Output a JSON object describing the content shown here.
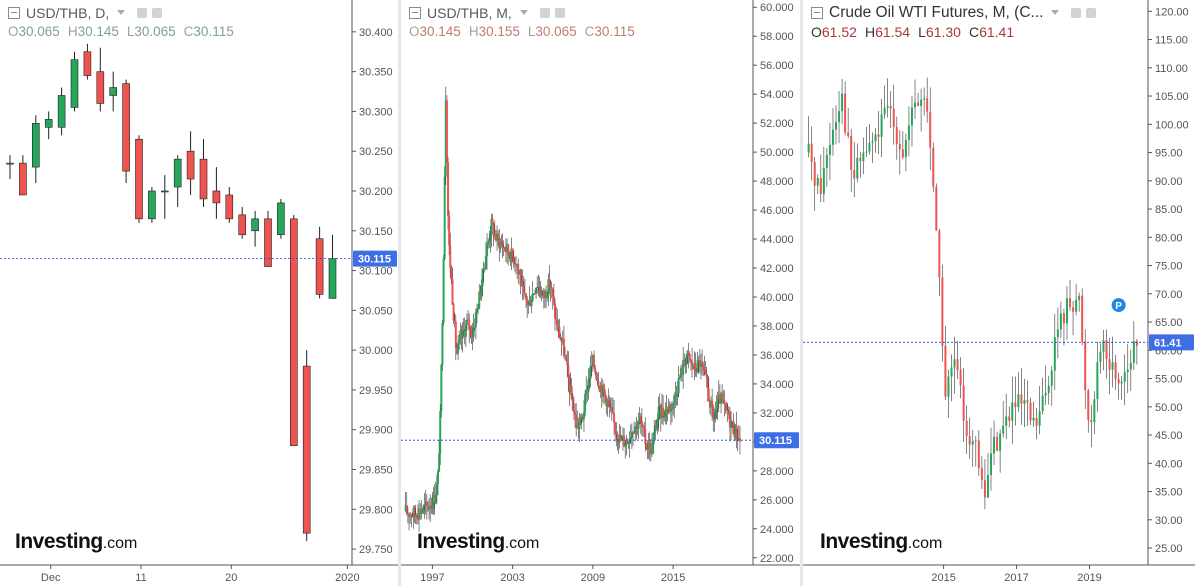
{
  "colors": {
    "up": "#26a65b",
    "down": "#ef5350",
    "price_line": "#1e49c8",
    "price_tag": "#3d6ee6",
    "axis_text": "#555555",
    "grid": "#f3f3f3"
  },
  "panels": [
    {
      "title": "USD/THB, D,",
      "ohlc": {
        "o_label": "O",
        "o": "30.065",
        "h_label": "H",
        "h": "30.145",
        "l_label": "L",
        "l": "30.065",
        "c_label": "C",
        "c": "30.115"
      },
      "logo": {
        "brand": "Investing",
        "suffix": ".com"
      }
    },
    {
      "title": "USD/THB, M,",
      "ohlc": {
        "o_label": "O",
        "o": "30.145",
        "h_label": "H",
        "h": "30.155",
        "l_label": "L",
        "l": "30.065",
        "c_label": "C",
        "c": "30.115"
      },
      "logo": {
        "brand": "Investing",
        "suffix": ".com"
      }
    },
    {
      "title": "Crude Oil WTI Futures, M, (C...",
      "ohlc": {
        "o_label": "O",
        "o": "61.52",
        "h_label": "H",
        "h": "61.54",
        "l_label": "L",
        "l": "61.30",
        "c_label": "C",
        "c": "61.41"
      },
      "logo": {
        "brand": "Investing",
        "suffix": ".com"
      }
    }
  ],
  "chart_data": [
    {
      "type": "candlestick",
      "title": "USD/THB, D,",
      "ylim": [
        29.73,
        30.44
      ],
      "y_ticks": [
        "30.400",
        "30.350",
        "30.300",
        "30.250",
        "30.200",
        "30.150",
        "30.100",
        "30.050",
        "30.000",
        "29.950",
        "29.900",
        "29.850",
        "29.800",
        "29.750"
      ],
      "x_ticks": [
        {
          "label": "Dec",
          "x": 3
        },
        {
          "label": "11",
          "x": 10
        },
        {
          "label": "20",
          "x": 17
        },
        {
          "label": "2020",
          "x": 26
        }
      ],
      "last_price": 30.115,
      "last_price_label": "30.115",
      "candles": [
        {
          "x": 0,
          "o": 30.235,
          "h": 30.245,
          "l": 30.215,
          "c": 30.235
        },
        {
          "x": 1,
          "o": 30.235,
          "h": 30.245,
          "l": 30.195,
          "c": 30.195
        },
        {
          "x": 2,
          "o": 30.23,
          "h": 30.295,
          "l": 30.21,
          "c": 30.285
        },
        {
          "x": 3,
          "o": 30.28,
          "h": 30.3,
          "l": 30.265,
          "c": 30.29
        },
        {
          "x": 4,
          "o": 30.28,
          "h": 30.33,
          "l": 30.27,
          "c": 30.32
        },
        {
          "x": 5,
          "o": 30.305,
          "h": 30.375,
          "l": 30.3,
          "c": 30.365
        },
        {
          "x": 6,
          "o": 30.375,
          "h": 30.385,
          "l": 30.34,
          "c": 30.345
        },
        {
          "x": 7,
          "o": 30.35,
          "h": 30.38,
          "l": 30.3,
          "c": 30.31
        },
        {
          "x": 8,
          "o": 30.32,
          "h": 30.35,
          "l": 30.3,
          "c": 30.33
        },
        {
          "x": 9,
          "o": 30.335,
          "h": 30.34,
          "l": 30.21,
          "c": 30.225
        },
        {
          "x": 10,
          "o": 30.265,
          "h": 30.27,
          "l": 30.16,
          "c": 30.165
        },
        {
          "x": 11,
          "o": 30.165,
          "h": 30.205,
          "l": 30.16,
          "c": 30.2
        },
        {
          "x": 12,
          "o": 30.2,
          "h": 30.22,
          "l": 30.165,
          "c": 30.2
        },
        {
          "x": 13,
          "o": 30.205,
          "h": 30.245,
          "l": 30.18,
          "c": 30.24
        },
        {
          "x": 14,
          "o": 30.25,
          "h": 30.275,
          "l": 30.195,
          "c": 30.215
        },
        {
          "x": 15,
          "o": 30.24,
          "h": 30.265,
          "l": 30.18,
          "c": 30.19
        },
        {
          "x": 16,
          "o": 30.2,
          "h": 30.23,
          "l": 30.165,
          "c": 30.185
        },
        {
          "x": 17,
          "o": 30.195,
          "h": 30.205,
          "l": 30.16,
          "c": 30.165
        },
        {
          "x": 18,
          "o": 30.17,
          "h": 30.18,
          "l": 30.14,
          "c": 30.145
        },
        {
          "x": 19,
          "o": 30.15,
          "h": 30.175,
          "l": 30.13,
          "c": 30.165
        },
        {
          "x": 20,
          "o": 30.165,
          "h": 30.175,
          "l": 30.105,
          "c": 30.105
        },
        {
          "x": 21,
          "o": 30.145,
          "h": 30.19,
          "l": 30.14,
          "c": 30.185
        },
        {
          "x": 22,
          "o": 30.165,
          "h": 30.17,
          "l": 29.88,
          "c": 29.88
        },
        {
          "x": 23,
          "o": 29.98,
          "h": 30.0,
          "l": 29.76,
          "c": 29.77
        },
        {
          "x": 24,
          "o": 30.14,
          "h": 30.155,
          "l": 30.065,
          "c": 30.07
        },
        {
          "x": 25,
          "o": 30.065,
          "h": 30.145,
          "l": 30.065,
          "c": 30.115
        }
      ]
    },
    {
      "type": "candlestick",
      "title": "USD/THB, M,",
      "ylim": [
        21.5,
        60.5
      ],
      "y_ticks": [
        "60.000",
        "58.000",
        "56.000",
        "54.000",
        "52.000",
        "50.000",
        "48.000",
        "46.000",
        "44.000",
        "42.000",
        "40.000",
        "38.000",
        "36.000",
        "34.000",
        "32.000",
        "30.000",
        "28.000",
        "26.000",
        "24.000",
        "22.000"
      ],
      "x_ticks": [
        {
          "label": "1997",
          "year": 1997
        },
        {
          "label": "2003",
          "year": 2003
        },
        {
          "label": "2009",
          "year": 2009
        },
        {
          "label": "2015",
          "year": 2015
        }
      ],
      "x_range": [
        1994.8,
        2020.6
      ],
      "last_price": 30.115,
      "last_price_label": "30.115",
      "series": [
        {
          "t": 1995.0,
          "v": 25.2
        },
        {
          "t": 1995.6,
          "v": 25.0
        },
        {
          "t": 1996.1,
          "v": 25.3
        },
        {
          "t": 1996.6,
          "v": 25.5
        },
        {
          "t": 1997.1,
          "v": 26.0
        },
        {
          "t": 1997.4,
          "v": 27.2
        },
        {
          "t": 1997.6,
          "v": 32.0
        },
        {
          "t": 1997.8,
          "v": 41.0
        },
        {
          "t": 1998.0,
          "v": 54.0
        },
        {
          "t": 1998.2,
          "v": 44.0
        },
        {
          "t": 1998.5,
          "v": 40.0
        },
        {
          "t": 1998.8,
          "v": 36.0
        },
        {
          "t": 1999.1,
          "v": 37.0
        },
        {
          "t": 1999.6,
          "v": 38.2
        },
        {
          "t": 2000.0,
          "v": 37.5
        },
        {
          "t": 2000.6,
          "v": 40.5
        },
        {
          "t": 2001.0,
          "v": 43.0
        },
        {
          "t": 2001.4,
          "v": 45.0
        },
        {
          "t": 2001.8,
          "v": 44.0
        },
        {
          "t": 2002.3,
          "v": 43.5
        },
        {
          "t": 2002.8,
          "v": 43.0
        },
        {
          "t": 2003.3,
          "v": 42.5
        },
        {
          "t": 2003.8,
          "v": 40.0
        },
        {
          "t": 2004.2,
          "v": 39.5
        },
        {
          "t": 2004.8,
          "v": 41.0
        },
        {
          "t": 2005.3,
          "v": 40.0
        },
        {
          "t": 2005.8,
          "v": 41.0
        },
        {
          "t": 2006.3,
          "v": 38.0
        },
        {
          "t": 2006.8,
          "v": 36.5
        },
        {
          "t": 2007.3,
          "v": 33.5
        },
        {
          "t": 2007.8,
          "v": 31.0
        },
        {
          "t": 2008.2,
          "v": 31.5
        },
        {
          "t": 2008.7,
          "v": 34.5
        },
        {
          "t": 2009.0,
          "v": 35.5
        },
        {
          "t": 2009.5,
          "v": 34.0
        },
        {
          "t": 2010.0,
          "v": 33.0
        },
        {
          "t": 2010.5,
          "v": 31.5
        },
        {
          "t": 2011.0,
          "v": 30.2
        },
        {
          "t": 2011.5,
          "v": 30.0
        },
        {
          "t": 2012.0,
          "v": 31.0
        },
        {
          "t": 2012.5,
          "v": 31.5
        },
        {
          "t": 2013.0,
          "v": 29.8
        },
        {
          "t": 2013.4,
          "v": 29.5
        },
        {
          "t": 2013.9,
          "v": 32.0
        },
        {
          "t": 2014.5,
          "v": 32.2
        },
        {
          "t": 2015.0,
          "v": 32.7
        },
        {
          "t": 2015.5,
          "v": 34.5
        },
        {
          "t": 2016.0,
          "v": 36.0
        },
        {
          "t": 2016.6,
          "v": 35.0
        },
        {
          "t": 2017.0,
          "v": 35.5
        },
        {
          "t": 2017.5,
          "v": 34.0
        },
        {
          "t": 2018.0,
          "v": 31.5
        },
        {
          "t": 2018.5,
          "v": 33.0
        },
        {
          "t": 2019.0,
          "v": 32.0
        },
        {
          "t": 2019.5,
          "v": 31.0
        },
        {
          "t": 2020.0,
          "v": 30.1
        }
      ]
    },
    {
      "type": "candlestick",
      "title": "Crude Oil WTI Futures, M, (C...",
      "ylim": [
        22.0,
        122.0
      ],
      "y_ticks": [
        "120.00",
        "115.00",
        "110.00",
        "105.00",
        "100.00",
        "95.00",
        "90.00",
        "85.00",
        "80.00",
        "75.00",
        "70.00",
        "65.00",
        "60.00",
        "55.00",
        "50.00",
        "45.00",
        "40.00",
        "35.00",
        "30.00",
        "25.00"
      ],
      "x_ticks": [
        {
          "label": "2015",
          "year": 2015
        },
        {
          "label": "2017",
          "year": 2017
        },
        {
          "label": "2019",
          "year": 2019
        }
      ],
      "x_range": [
        2011.2,
        2020.55
      ],
      "last_price": 61.41,
      "last_price_label": "61.41",
      "marker": {
        "label": "P",
        "year": 2019.8,
        "value": 68.0
      },
      "series": [
        {
          "t": 2011.3,
          "v": 95.0
        },
        {
          "t": 2011.6,
          "v": 88.0
        },
        {
          "t": 2011.9,
          "v": 98.0
        },
        {
          "t": 2012.2,
          "v": 106.0
        },
        {
          "t": 2012.5,
          "v": 90.0
        },
        {
          "t": 2012.8,
          "v": 95.0
        },
        {
          "t": 2013.1,
          "v": 97.0
        },
        {
          "t": 2013.5,
          "v": 103.0
        },
        {
          "t": 2013.9,
          "v": 95.0
        },
        {
          "t": 2014.2,
          "v": 103.0
        },
        {
          "t": 2014.5,
          "v": 105.0
        },
        {
          "t": 2014.7,
          "v": 92.0
        },
        {
          "t": 2014.9,
          "v": 70.0
        },
        {
          "t": 2015.05,
          "v": 52.0
        },
        {
          "t": 2015.3,
          "v": 58.0
        },
        {
          "t": 2015.6,
          "v": 47.0
        },
        {
          "t": 2015.9,
          "v": 42.0
        },
        {
          "t": 2016.1,
          "v": 33.0
        },
        {
          "t": 2016.3,
          "v": 42.0
        },
        {
          "t": 2016.6,
          "v": 46.0
        },
        {
          "t": 2016.9,
          "v": 50.0
        },
        {
          "t": 2017.2,
          "v": 50.0
        },
        {
          "t": 2017.5,
          "v": 46.0
        },
        {
          "t": 2017.8,
          "v": 52.0
        },
        {
          "t": 2018.1,
          "v": 63.0
        },
        {
          "t": 2018.4,
          "v": 68.0
        },
        {
          "t": 2018.7,
          "v": 70.0
        },
        {
          "t": 2018.9,
          "v": 52.0
        },
        {
          "t": 2019.0,
          "v": 46.0
        },
        {
          "t": 2019.3,
          "v": 62.0
        },
        {
          "t": 2019.5,
          "v": 58.0
        },
        {
          "t": 2019.8,
          "v": 55.0
        },
        {
          "t": 2020.1,
          "v": 58.0
        },
        {
          "t": 2020.35,
          "v": 61.4
        }
      ]
    }
  ]
}
